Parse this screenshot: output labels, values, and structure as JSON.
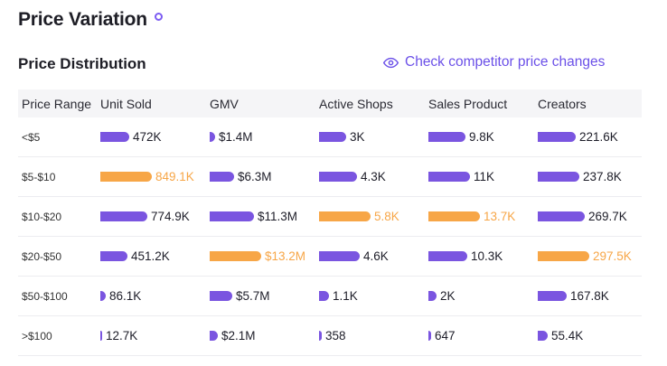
{
  "header": {
    "title": "Price Variation"
  },
  "section": {
    "title": "Price Distribution",
    "link_label": "Check competitor price changes"
  },
  "colors": {
    "bar": "#7a55e0",
    "highlight": "#f7a647",
    "accent": "#6b50e8"
  },
  "table": {
    "columns": [
      "Price Range",
      "Unit Sold",
      "GMV",
      "Active Shops",
      "Sales Product",
      "Creators"
    ],
    "rows": [
      {
        "range": "<$5",
        "cells": [
          {
            "label": "472K",
            "fraction": 0.56,
            "highlight": false
          },
          {
            "label": "$1.4M",
            "fraction": 0.106,
            "highlight": false
          },
          {
            "label": "3K",
            "fraction": 0.52,
            "highlight": false
          },
          {
            "label": "9.8K",
            "fraction": 0.72,
            "highlight": false
          },
          {
            "label": "221.6K",
            "fraction": 0.745,
            "highlight": false
          }
        ]
      },
      {
        "range": "$5-$10",
        "cells": [
          {
            "label": "849.1K",
            "fraction": 1.0,
            "highlight": true
          },
          {
            "label": "$6.3M",
            "fraction": 0.477,
            "highlight": false
          },
          {
            "label": "4.3K",
            "fraction": 0.74,
            "highlight": false
          },
          {
            "label": "11K",
            "fraction": 0.8,
            "highlight": false
          },
          {
            "label": "237.8K",
            "fraction": 0.8,
            "highlight": false
          }
        ]
      },
      {
        "range": "$10-$20",
        "cells": [
          {
            "label": "774.9K",
            "fraction": 0.91,
            "highlight": false
          },
          {
            "label": "$11.3M",
            "fraction": 0.856,
            "highlight": false
          },
          {
            "label": "5.8K",
            "fraction": 1.0,
            "highlight": true
          },
          {
            "label": "13.7K",
            "fraction": 1.0,
            "highlight": true
          },
          {
            "label": "269.7K",
            "fraction": 0.906,
            "highlight": false
          }
        ]
      },
      {
        "range": "$20-$50",
        "cells": [
          {
            "label": "451.2K",
            "fraction": 0.53,
            "highlight": false
          },
          {
            "label": "$13.2M",
            "fraction": 1.0,
            "highlight": true
          },
          {
            "label": "4.6K",
            "fraction": 0.79,
            "highlight": false
          },
          {
            "label": "10.3K",
            "fraction": 0.75,
            "highlight": false
          },
          {
            "label": "297.5K",
            "fraction": 1.0,
            "highlight": true
          }
        ]
      },
      {
        "range": "$50-$100",
        "cells": [
          {
            "label": "86.1K",
            "fraction": 0.1,
            "highlight": false
          },
          {
            "label": "$5.7M",
            "fraction": 0.43,
            "highlight": false
          },
          {
            "label": "1.1K",
            "fraction": 0.19,
            "highlight": false
          },
          {
            "label": "2K",
            "fraction": 0.15,
            "highlight": false
          },
          {
            "label": "167.8K",
            "fraction": 0.56,
            "highlight": false
          }
        ]
      },
      {
        "range": ">$100",
        "cells": [
          {
            "label": "12.7K",
            "fraction": 0.015,
            "highlight": false
          },
          {
            "label": "$2.1M",
            "fraction": 0.16,
            "highlight": false
          },
          {
            "label": "358",
            "fraction": 0.06,
            "highlight": false
          },
          {
            "label": "647",
            "fraction": 0.05,
            "highlight": false
          },
          {
            "label": "55.4K",
            "fraction": 0.19,
            "highlight": false
          }
        ]
      }
    ]
  }
}
